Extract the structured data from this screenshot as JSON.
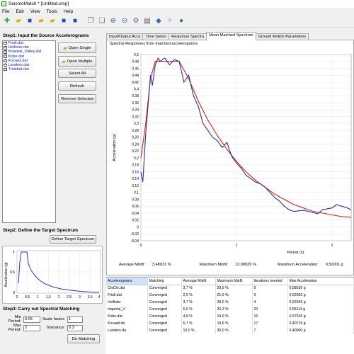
{
  "window": {
    "title": "SeismoMatch * [Untitled.smp]"
  },
  "menu": [
    "File",
    "Edit",
    "View",
    "Tools",
    "Help"
  ],
  "toolbar": {
    "icons": [
      "new-file-icon",
      "open-folder-icon",
      "save-icon",
      "open-folder-icon",
      "open-folder-icon",
      "save-icon",
      "save-icon",
      "copy-icon",
      "paste-icon",
      "zoom-in-icon",
      "zoom-out-icon",
      "settings-icon",
      "report-icon",
      "database-icon",
      "tools-icon",
      "globe-icon"
    ]
  },
  "step1": {
    "title": "Step1: Input the Source Accelerograms",
    "accelerograms": [
      "Friuli.dat",
      "Hollister.dat",
      "Imperial_Valley.dat",
      "Kobe.dat",
      "Kocaeli.dat",
      "Landers.dat",
      "Trinidad.dat"
    ],
    "open_single": "Open Single",
    "open_multiple": "Open Multiple",
    "select_all": "Select All",
    "refresh": "Refresh",
    "remove_selected": "Remove Selected"
  },
  "step2": {
    "title": "Step2: Define the Target Spectrum",
    "define_button": "Define Target Spectrum",
    "ylabel": "Acceleration (g)",
    "yticks": [
      "1",
      "0,5",
      "0"
    ],
    "xticks": [
      "0",
      "0,5",
      "1",
      "1,5",
      "2",
      "2,5",
      "3",
      "3,5",
      "4"
    ]
  },
  "step3": {
    "title": "Step3: Carry out Spectral Matching",
    "min_period_label": "Min Period:",
    "min_period_value": "0.05",
    "scale_factor_label": "Scale factor:",
    "scale_factor_value": "1",
    "max_period_label": "Max Period:",
    "max_period_value": "2",
    "tolerance_label": "Tolerance:",
    "tolerance_value": "0.3",
    "do_matching": "Do Matching"
  },
  "tabs": [
    "Input/Output Acce",
    "Time Series",
    "Response Spectra",
    "Mean Matched Spectrum",
    "Ground Motion Parameters"
  ],
  "active_tab": 3,
  "stats": {
    "avg_misfit_label": "Average Misfit:",
    "avg_misfit_value": "3,48031 %",
    "max_misfit_label": "Maximum Misfit:",
    "max_misfit_value": "13,08939 %",
    "max_accel_label": "Maximum Acceleration:",
    "max_accel_value": "0,50001 g"
  },
  "table": {
    "headers": [
      "Accelerograms",
      "Matching",
      "Average Misfit",
      "Maximum Misfit",
      "Iterations needed",
      "Max Acceleration"
    ],
    "rows": [
      [
        "ChiChi.dat",
        "Converged",
        "3,7 %",
        "29,5 %",
        "9",
        "0,58539 g"
      ],
      [
        "Friuli.dat",
        "Converged",
        "2,5 %",
        "21,6 %",
        "9",
        "0,62002 g"
      ],
      [
        "Hollister",
        "Converged",
        "3,7 %",
        "28,6 %",
        "4",
        "0,52349 g"
      ],
      [
        "Imperial_V",
        "Converged",
        "5,0 %",
        "26,3 %",
        "20",
        "0,55114 g"
      ],
      [
        "Kobe.dat",
        "Converged",
        "4,8 %",
        "19,9 %",
        "16",
        "0,57626 g"
      ],
      [
        "Kocaeli.da",
        "Converged",
        "6,7 %",
        "19,6 %",
        "17",
        "0,40719 g"
      ],
      [
        "Landers.da",
        "Converged",
        "10,0 %",
        "30,0 %",
        "7",
        "0,40000 g"
      ]
    ]
  },
  "chart_data": {
    "type": "line",
    "title": "Spectral Responses from matched accelerograms",
    "xlabel": "Period (s)",
    "ylabel": "Acceleration (g)",
    "xlim": [
      0,
      2.2
    ],
    "ylim": [
      -0.04,
      0.5
    ],
    "yticks": [
      "0,5",
      "0,48",
      "0,46",
      "0,44",
      "0,42",
      "0,4",
      "0,38",
      "0,36",
      "0,34",
      "0,32",
      "0,3",
      "0,28",
      "0,26",
      "0,24",
      "0,22",
      "0,2",
      "0,18",
      "0,16",
      "0,14",
      "0,12",
      "0,1",
      "0,08",
      "0,06",
      "0,04",
      "0,02",
      "0",
      "-0,02",
      "-0,04"
    ],
    "xticks": [
      "0",
      "1",
      "2"
    ],
    "series": [
      {
        "color": "#d42020",
        "points": [
          [
            0.0,
            0.2
          ],
          [
            0.05,
            0.3
          ],
          [
            0.1,
            0.43
          ],
          [
            0.15,
            0.48
          ],
          [
            0.2,
            0.48
          ],
          [
            0.3,
            0.48
          ],
          [
            0.4,
            0.48
          ],
          [
            0.5,
            0.43
          ],
          [
            0.6,
            0.365
          ],
          [
            0.7,
            0.31
          ],
          [
            0.8,
            0.265
          ],
          [
            0.9,
            0.225
          ],
          [
            1.0,
            0.19
          ],
          [
            1.1,
            0.16
          ],
          [
            1.2,
            0.135
          ],
          [
            1.3,
            0.115
          ],
          [
            1.4,
            0.095
          ],
          [
            1.5,
            0.08
          ],
          [
            1.6,
            0.065
          ],
          [
            1.7,
            0.055
          ],
          [
            1.8,
            0.045
          ],
          [
            1.9,
            0.04
          ],
          [
            2.0,
            0.035
          ],
          [
            2.1,
            0.03
          ],
          [
            2.2,
            0.028
          ]
        ]
      },
      {
        "color": "#3030a0",
        "points": [
          [
            0.0,
            0.16
          ],
          [
            0.02,
            0.13
          ],
          [
            0.05,
            0.27
          ],
          [
            0.08,
            0.37
          ],
          [
            0.1,
            0.44
          ],
          [
            0.12,
            0.41
          ],
          [
            0.15,
            0.47
          ],
          [
            0.18,
            0.49
          ],
          [
            0.2,
            0.48
          ],
          [
            0.25,
            0.49
          ],
          [
            0.3,
            0.47
          ],
          [
            0.35,
            0.485
          ],
          [
            0.4,
            0.48
          ],
          [
            0.45,
            0.42
          ],
          [
            0.5,
            0.44
          ],
          [
            0.55,
            0.38
          ],
          [
            0.6,
            0.35
          ],
          [
            0.65,
            0.3
          ],
          [
            0.7,
            0.28
          ],
          [
            0.75,
            0.26
          ],
          [
            0.8,
            0.25
          ],
          [
            0.85,
            0.23
          ],
          [
            0.9,
            0.245
          ],
          [
            0.95,
            0.205
          ],
          [
            1.0,
            0.185
          ],
          [
            1.05,
            0.17
          ],
          [
            1.1,
            0.15
          ],
          [
            1.15,
            0.14
          ],
          [
            1.2,
            0.13
          ],
          [
            1.25,
            0.125
          ],
          [
            1.3,
            0.115
          ],
          [
            1.35,
            0.1
          ],
          [
            1.4,
            0.085
          ],
          [
            1.45,
            0.075
          ],
          [
            1.5,
            0.06
          ],
          [
            1.55,
            0.05
          ],
          [
            1.6,
            0.045
          ],
          [
            1.7,
            0.048
          ],
          [
            1.8,
            0.042
          ],
          [
            1.85,
            0.038
          ],
          [
            1.9,
            0.05
          ],
          [
            2.0,
            0.055
          ],
          [
            2.05,
            0.065
          ],
          [
            2.1,
            0.06
          ],
          [
            2.15,
            0.056
          ],
          [
            2.2,
            0.05
          ]
        ]
      }
    ]
  }
}
